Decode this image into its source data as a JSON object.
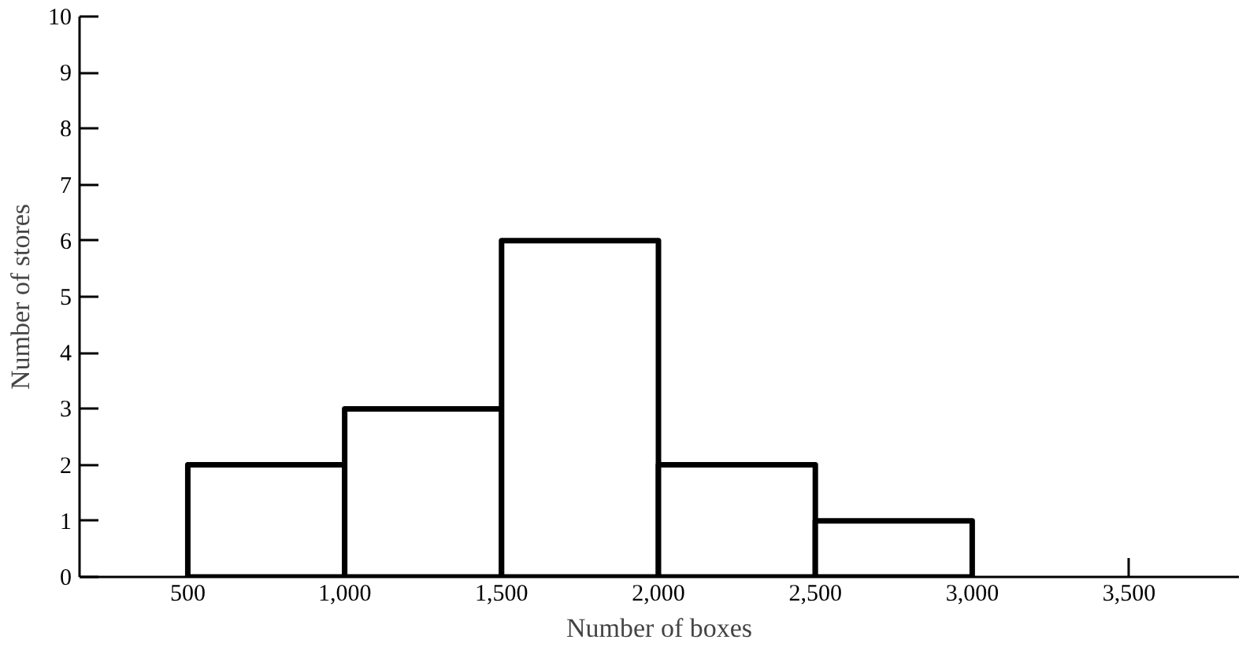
{
  "chart_data": {
    "type": "histogram",
    "xlabel": "Number of boxes",
    "ylabel": "Number of stores",
    "bins": [
      500,
      1000,
      1500,
      2000,
      2500,
      3000
    ],
    "values": [
      2,
      3,
      6,
      2,
      1
    ],
    "color": "#000000",
    "xlim": [
      155,
      3850
    ],
    "ylim": [
      0,
      10
    ],
    "xticks": [
      {
        "value": 500,
        "label": "500"
      },
      {
        "value": 1000,
        "label": "1,000"
      },
      {
        "value": 1500,
        "label": "1,500"
      },
      {
        "value": 2000,
        "label": "2,000"
      },
      {
        "value": 2500,
        "label": "2,500"
      },
      {
        "value": 3000,
        "label": "3,000"
      },
      {
        "value": 3500,
        "label": "3,500"
      }
    ],
    "yticks": [
      0,
      1,
      2,
      3,
      4,
      5,
      6,
      7,
      8,
      9,
      10
    ],
    "grid": false
  }
}
